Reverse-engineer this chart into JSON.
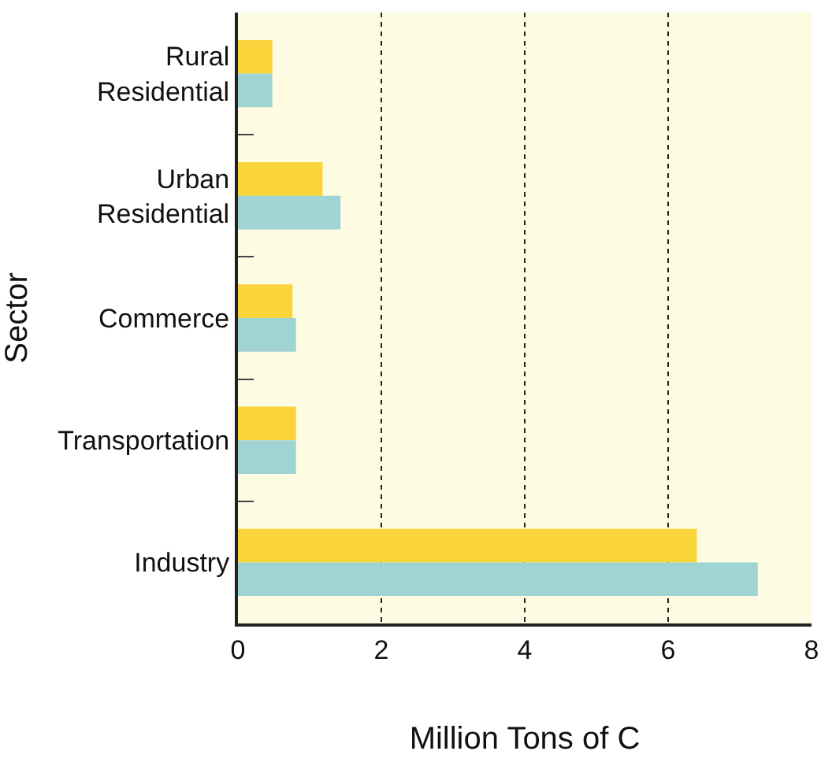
{
  "chart_data": {
    "type": "bar",
    "orientation": "horizontal",
    "categories": [
      "Rural Residential",
      "Urban Residential",
      "Commerce",
      "Transportation",
      "Industry"
    ],
    "series": [
      {
        "color": "#f9d43a",
        "values": [
          0.48,
          1.18,
          0.76,
          0.81,
          6.4
        ]
      },
      {
        "color": "#a0d3d3",
        "values": [
          0.48,
          1.43,
          0.81,
          0.81,
          7.25
        ]
      }
    ],
    "xlim": [
      0,
      8
    ],
    "xticks": [
      0,
      2,
      4,
      6,
      8
    ],
    "grid": "x",
    "legend": false,
    "xlabel": "Million Tons of C",
    "ylabel": "Sector"
  }
}
